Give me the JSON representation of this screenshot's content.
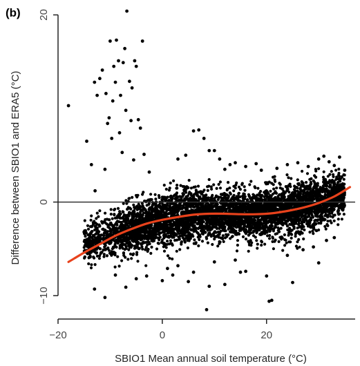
{
  "chart_data": {
    "type": "scatter",
    "panel_label": "(b)",
    "title": "",
    "xlabel": "SBIO1 Mean annual soil temperature (°C)",
    "ylabel": "Difference between SBIO1 and ERA5 (°C)",
    "xlim": [
      -20,
      37
    ],
    "ylim": [
      -12.5,
      21
    ],
    "x_ticks": [
      -20,
      0,
      20
    ],
    "y_ticks": [
      -10,
      0,
      20
    ],
    "x_tick_labels": [
      "−20",
      "0",
      "20"
    ],
    "y_tick_labels": [
      "−10",
      "0",
      "20"
    ],
    "reference_line_y": 0,
    "grid": false,
    "legend": "none",
    "colors": {
      "points": "#000000",
      "fit": "#e8421c",
      "reference": "#333333",
      "axis": "#222222"
    },
    "series": [
      {
        "type": "scatter",
        "x": [
          -18,
          -14.5,
          -13,
          -12.5,
          -12,
          -11.5,
          -10.8,
          -10.2,
          -10,
          -9.7,
          -9.3,
          -8.8,
          -8.4,
          -8,
          -7.7,
          -7.5,
          -7.2,
          -6.8,
          -6.3,
          -5.8,
          -5.3,
          -5,
          -4.6,
          -4.2,
          -3.8,
          -3.5,
          -13.6,
          -12.9,
          -11,
          -10.5,
          -9.5,
          -9,
          -8.2,
          -7,
          -6,
          -5.5,
          -2.5,
          6,
          7,
          8,
          10,
          12,
          13,
          3,
          4.5,
          9,
          11,
          14,
          16,
          18,
          19,
          22,
          24,
          26,
          28,
          30,
          31,
          32,
          33,
          34,
          35,
          2,
          5,
          9,
          12,
          15,
          20,
          21,
          25,
          30,
          8.5,
          20.5,
          10,
          14,
          24,
          16,
          27,
          29,
          31.5,
          33,
          -15,
          -13,
          -11,
          -9,
          -7,
          -5,
          -3,
          0,
          1,
          3,
          6
        ],
        "y": [
          10.3,
          6.5,
          12.8,
          11.4,
          13.2,
          14.1,
          11.6,
          9,
          17.2,
          6.8,
          14.5,
          17.3,
          15.1,
          11.4,
          5.3,
          14.9,
          16.4,
          20.4,
          12.9,
          12.2,
          15.1,
          14.5,
          8.8,
          7.9,
          17.2,
          5.1,
          4,
          1.2,
          3.5,
          8.4,
          10.8,
          12.8,
          7.4,
          9.8,
          8.7,
          4.5,
          3.2,
          7.6,
          7.7,
          6.8,
          5.5,
          3.5,
          4,
          4.6,
          5,
          5.5,
          4.6,
          4.2,
          3.8,
          4.1,
          3.4,
          3.6,
          4,
          4.2,
          3.8,
          4.6,
          4.9,
          4.3,
          3.9,
          4.8,
          3.4,
          -7.8,
          -8.5,
          -9,
          -8.8,
          -7.5,
          -7.9,
          -10.5,
          -8.6,
          -6.5,
          -11.5,
          -10.6,
          -6.4,
          -6.2,
          -5.7,
          -7.4,
          -5.1,
          -4.8,
          -4.1,
          -3.8,
          -3.2,
          -9.3,
          -10.2,
          -7.8,
          -9.1,
          -8.2,
          -7.9,
          -8.4,
          -7.1,
          -6.8,
          -7.5
        ]
      },
      {
        "type": "line",
        "name": "",
        "x": [
          -18,
          -15,
          -12,
          -9,
          -6,
          -3,
          0,
          3,
          6,
          9,
          12,
          15,
          18,
          21,
          24,
          27,
          30,
          33,
          36
        ],
        "y": [
          -6.4,
          -5.4,
          -4.5,
          -3.6,
          -2.9,
          -2.3,
          -1.9,
          -1.6,
          -1.35,
          -1.25,
          -1.25,
          -1.3,
          -1.3,
          -1.2,
          -0.95,
          -0.6,
          -0.1,
          0.6,
          1.6
        ]
      }
    ],
    "dense_cloud": {
      "x_range": [
        -15,
        35
      ],
      "center_y": [
        [
          -15,
          -4.5
        ],
        [
          -12,
          -3.9
        ],
        [
          -8,
          -3.2
        ],
        [
          -4,
          -2.6
        ],
        [
          0,
          -1.9
        ],
        [
          4,
          -1.5
        ],
        [
          8,
          -1.3
        ],
        [
          12,
          -1.25
        ],
        [
          16,
          -1.3
        ],
        [
          20,
          -1.2
        ],
        [
          24,
          -0.9
        ],
        [
          28,
          -0.4
        ],
        [
          32,
          0.3
        ],
        [
          35,
          0.8
        ]
      ],
      "spread": [
        [
          -15,
          1.6
        ],
        [
          -10,
          2.2
        ],
        [
          -5,
          2.3
        ],
        [
          0,
          2.4
        ],
        [
          5,
          2.6
        ],
        [
          10,
          2.3
        ],
        [
          15,
          2.1
        ],
        [
          20,
          2.3
        ],
        [
          25,
          2.6
        ],
        [
          30,
          2.4
        ],
        [
          35,
          1.8
        ]
      ]
    }
  }
}
